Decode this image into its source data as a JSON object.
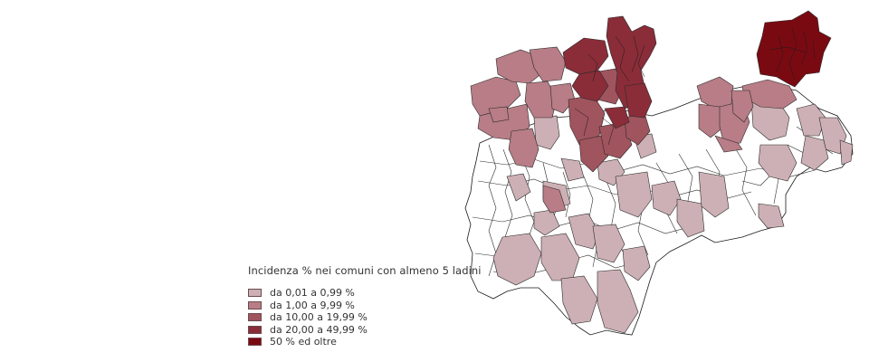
{
  "legend": {
    "title": "Incidenza % nei comuni con almeno 5 ladini",
    "classes": [
      {
        "label": "da 0,01 a 0,99 %",
        "color": "#cdb0b5"
      },
      {
        "label": "da 1,00 a 9,99 %",
        "color": "#b87d86"
      },
      {
        "label": "da 10,00 a 19,99 %",
        "color": "#a0545e"
      },
      {
        "label": "da 20,00 a 49,99 %",
        "color": "#8a2d39"
      },
      {
        "label": "50 %  ed oltre",
        "color": "#7a0a12"
      }
    ]
  },
  "colors": {
    "empty": "#ffffff",
    "border": "#1a1a1a"
  }
}
